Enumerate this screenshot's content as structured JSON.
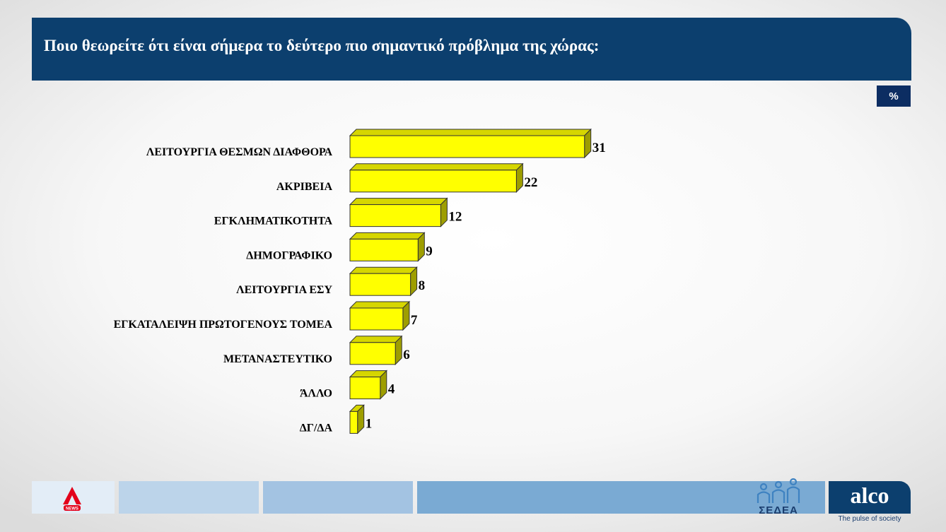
{
  "header": {
    "title": "Ποιο θεωρείτε ότι είναι σήμερα το δεύτερο πιο σημαντικό πρόβλημα της χώρας:"
  },
  "unit_badge": "%",
  "colors": {
    "header_bg": "#0c3f6e",
    "bar_front": "#ffff00",
    "bar_top": "#d6d600",
    "bar_side": "#9e9e00",
    "bar_outline": "#333333"
  },
  "chart_data": {
    "type": "bar",
    "orientation": "horizontal",
    "style": "3d",
    "categories": [
      "ΛΕΙΤΟΥΡΓΙΑ ΘΕΣΜΩΝ  ΔΙΑΦΘΟΡΑ",
      "ΑΚΡΙΒΕΙΑ",
      "ΕΓΚΛΗΜΑΤΙΚΟΤΗΤΑ",
      "ΔΗΜΟΓΡΑΦΙΚΟ",
      "ΛΕΙΤΟΥΡΓΙΑ ΕΣΥ",
      "ΕΓΚΑΤΑΛΕΙΨΗ ΠΡΩΤΟΓΕΝΟΥΣ ΤΟΜΕΑ",
      "ΜΕΤΑΝΑΣΤΕΥΤΙΚΟ",
      "ΆΛΛΟ",
      "ΔΓ/ΔΑ"
    ],
    "values": [
      31,
      22,
      12,
      9,
      8,
      7,
      6,
      4,
      1
    ],
    "data_labels": [
      "31",
      "22",
      "12",
      "9",
      "8",
      "7",
      "6",
      "4",
      "1"
    ],
    "unit": "%",
    "grid": false,
    "legend": "none"
  },
  "footer": {
    "alpha_logo": "ALPHA NEWS",
    "sedea_label": "ΣΕΔΕΑ",
    "alco_label": "alco",
    "alco_tagline": "The pulse of society"
  }
}
